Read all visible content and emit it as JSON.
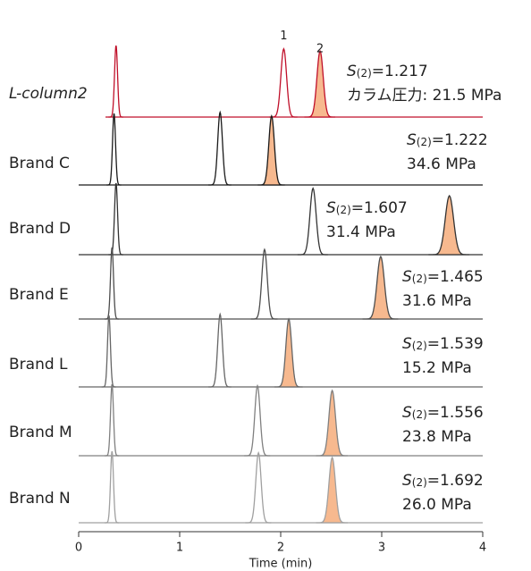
{
  "chart_data": {
    "type": "chromatogram",
    "x_label": "Time (min)",
    "xlim": [
      0,
      4
    ],
    "xticks": [
      0,
      1,
      2,
      3,
      4
    ],
    "peak_labels": [
      "1",
      "2"
    ],
    "resolution_symbol": "S",
    "resolution_subscript": "(2)",
    "fill_color": "#f7b98f",
    "series": [
      {
        "name": "L-column2",
        "color": "#c0102a",
        "resolution_label": "=1.217",
        "pressure_label": "カラム圧力: 21.5 MPa",
        "peak_times": [
          0.37,
          2.03,
          2.39
        ]
      },
      {
        "name": "Brand C",
        "color": "#1a1a1a",
        "resolution_label": "=1.222",
        "pressure_label": "34.6 MPa",
        "peak_times": [
          0.35,
          1.4,
          1.91
        ]
      },
      {
        "name": "Brand D",
        "color": "#333333",
        "resolution_label": "=1.607",
        "pressure_label": "31.4 MPa",
        "peak_times": [
          0.37,
          2.32,
          3.67
        ]
      },
      {
        "name": "Brand E",
        "color": "#4d4d4d",
        "resolution_label": "=1.465",
        "pressure_label": "31.6 MPa",
        "peak_times": [
          0.33,
          1.84,
          2.99
        ]
      },
      {
        "name": "Brand L",
        "color": "#666666",
        "resolution_label": "=1.539",
        "pressure_label": "15.2 MPa",
        "peak_times": [
          0.3,
          1.4,
          2.08
        ]
      },
      {
        "name": "Brand M",
        "color": "#808080",
        "resolution_label": "=1.556",
        "pressure_label": "23.8 MPa",
        "peak_times": [
          0.33,
          1.77,
          2.51
        ]
      },
      {
        "name": "Brand N",
        "color": "#a0a0a0",
        "resolution_label": "=1.692",
        "pressure_label": "26.0 MPa",
        "peak_times": [
          0.33,
          1.78,
          2.51
        ]
      }
    ]
  }
}
